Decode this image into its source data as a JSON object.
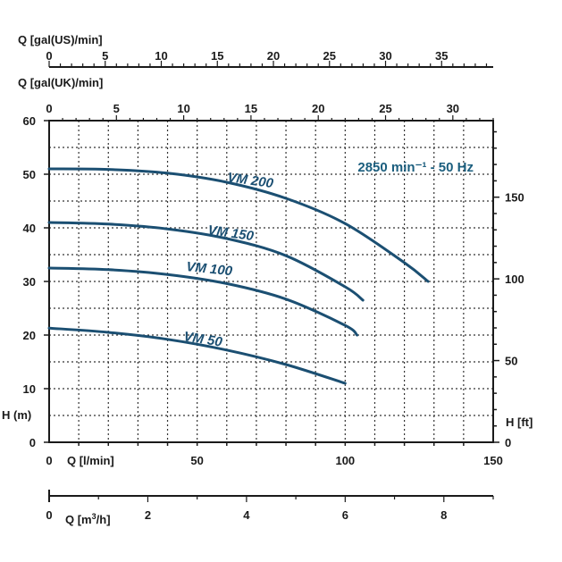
{
  "chart_data": {
    "type": "line",
    "annotation": "2850 min⁻¹ - 50 Hz",
    "colors": {
      "curve": "#1b4f72",
      "annotation": "#1b5e7e",
      "axis": "#1a1a1a",
      "grid": "#333333"
    },
    "plot": {
      "xlim": [
        0,
        150
      ],
      "ylim": [
        0,
        60
      ],
      "grid": true,
      "grid_style": "dotted"
    },
    "axes": {
      "left": {
        "label": "H (m)",
        "ticks": [
          0,
          10,
          20,
          30,
          40,
          50,
          60
        ]
      },
      "right": {
        "label": "H [ft]",
        "range": [
          0,
          196.85
        ],
        "ticks": [
          0,
          50,
          100,
          150
        ]
      },
      "bottom": {
        "label": "Q [l/min]",
        "ticks": [
          0,
          50,
          100,
          150
        ]
      },
      "top_uk": {
        "label": "Q [gal(UK)/min]",
        "range": [
          0,
          33
        ],
        "ticks": [
          0,
          5,
          10,
          15,
          20,
          25,
          30
        ]
      },
      "top_us": {
        "label": "Q [gal(US)/min]",
        "range": [
          0,
          39.6
        ],
        "ticks": [
          0,
          5,
          10,
          15,
          20,
          25,
          30,
          35
        ]
      },
      "bottom2": {
        "label_main": "Q [m",
        "label_sup": "3",
        "label_end": "/h]",
        "range": [
          0,
          9
        ],
        "ticks": [
          0,
          2,
          4,
          6,
          8
        ]
      }
    },
    "series": [
      {
        "name": "VM 200",
        "x": [
          0,
          20,
          40,
          60,
          80,
          100,
          120,
          128
        ],
        "y": [
          51,
          50.9,
          50.2,
          48.5,
          45.5,
          40.8,
          33.5,
          30
        ]
      },
      {
        "name": "VM 150",
        "x": [
          0,
          20,
          40,
          60,
          80,
          100,
          106
        ],
        "y": [
          41,
          40.7,
          39.8,
          38,
          34.8,
          29,
          26.5
        ]
      },
      {
        "name": "VM 100",
        "x": [
          0,
          20,
          40,
          60,
          80,
          100,
          104
        ],
        "y": [
          32.5,
          32.2,
          31.3,
          29.6,
          26.7,
          21.8,
          20
        ]
      },
      {
        "name": "VM 50",
        "x": [
          0,
          20,
          40,
          60,
          80,
          100
        ],
        "y": [
          21.3,
          20.5,
          19.2,
          17.2,
          14.5,
          11
        ]
      }
    ]
  }
}
